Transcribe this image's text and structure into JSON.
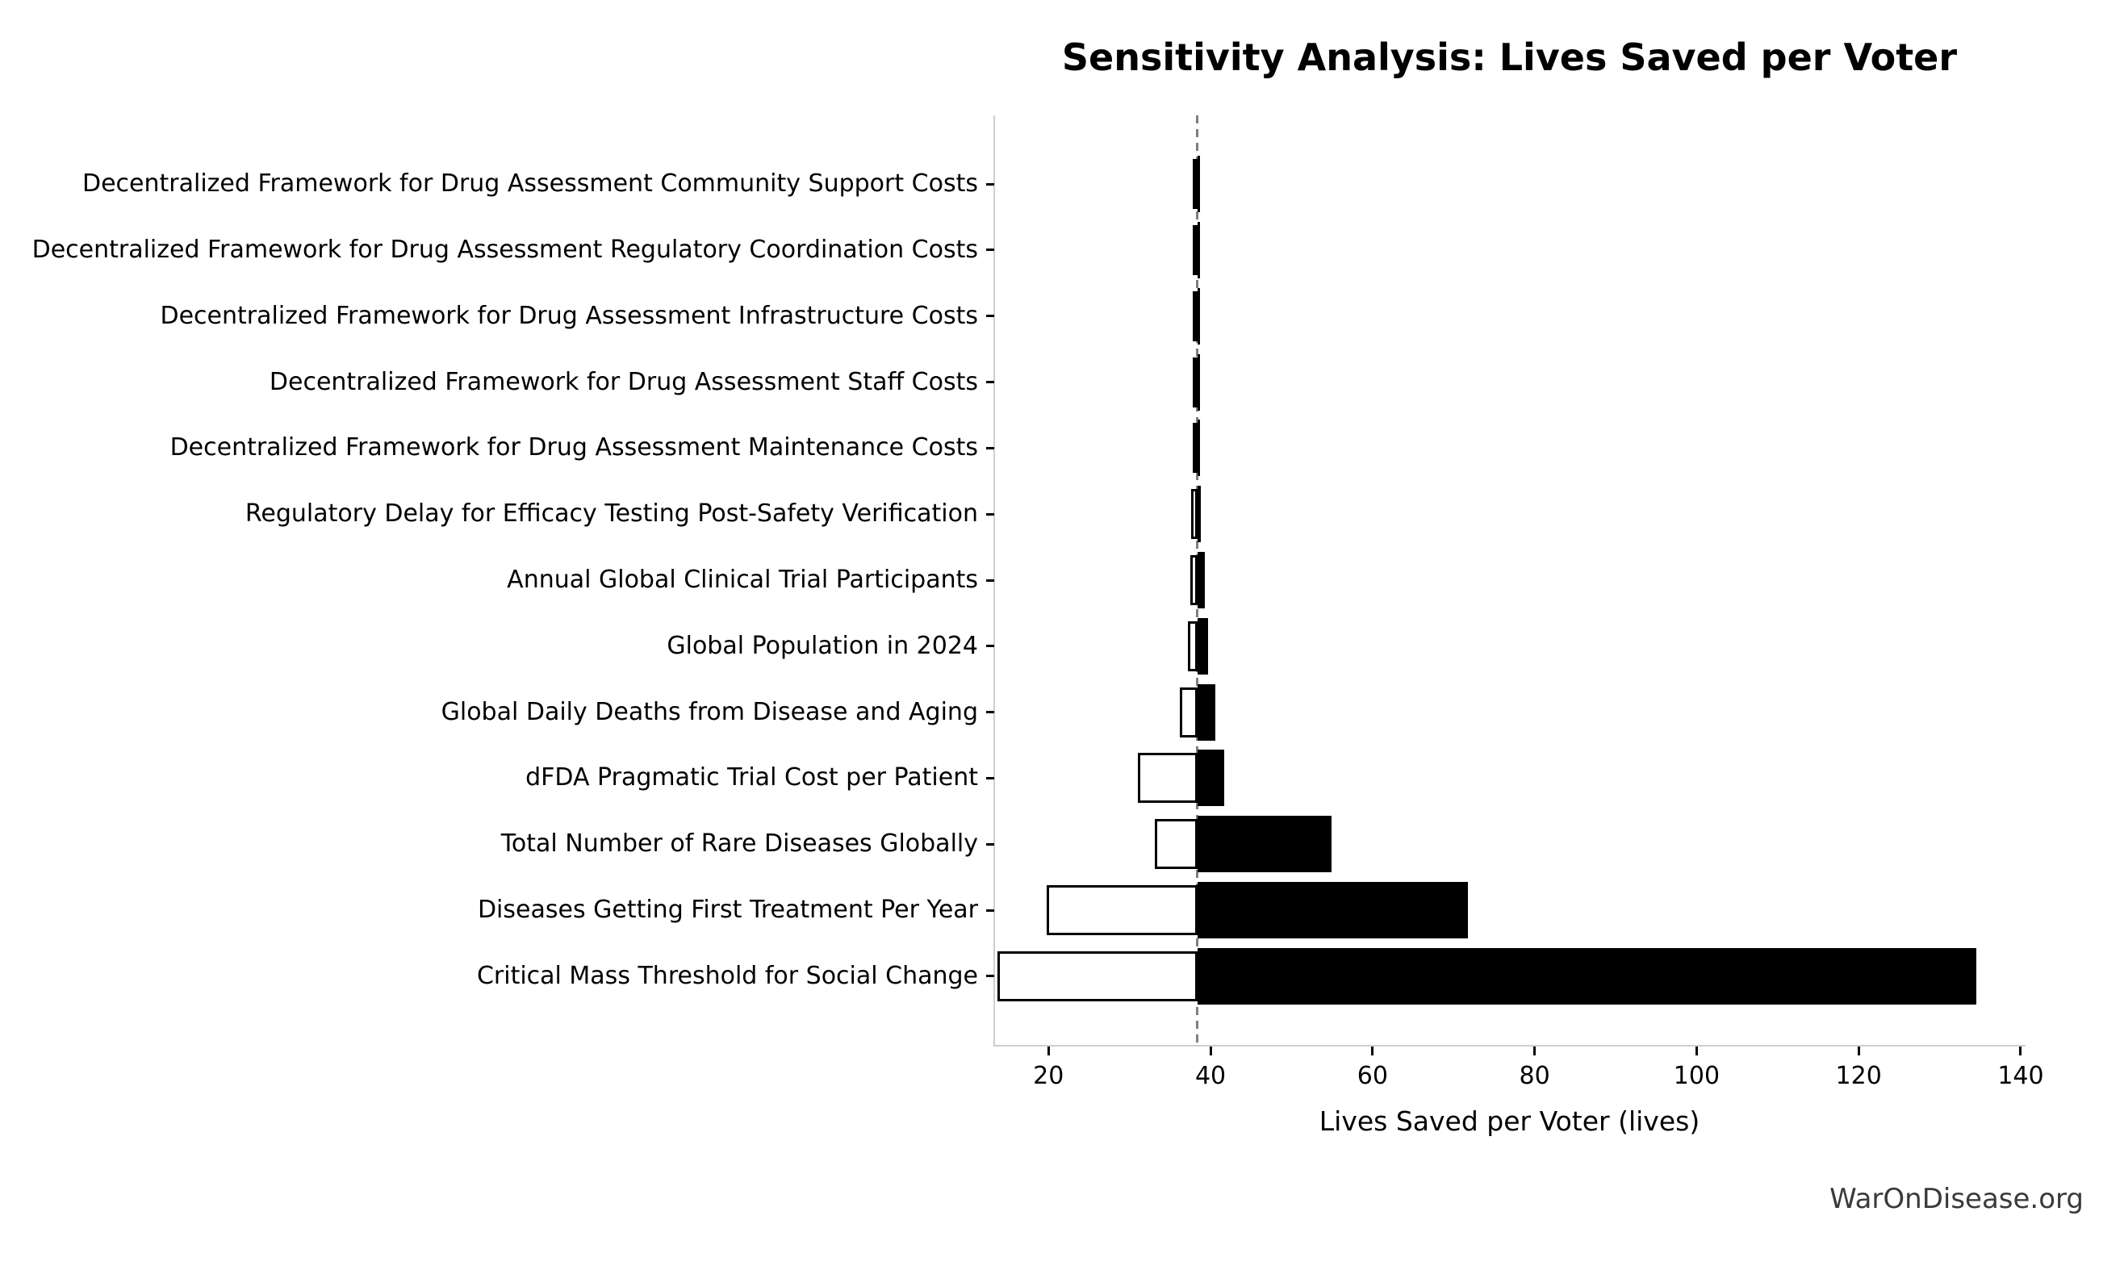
{
  "page": {
    "watermark": "WarOnDisease.org"
  },
  "colors": {
    "bar_high": "#000000",
    "bar_low_fill": "#ffffff",
    "bar_low_edge": "#000000",
    "spine": "#cfcfcf",
    "baseline_dash": "#7f7f7f",
    "text": "#000000",
    "watermark": "#3a3a3a"
  },
  "chart_data": {
    "type": "bar",
    "subtype": "tornado-sensitivity",
    "orientation": "horizontal",
    "title": "Sensitivity Analysis: Lives Saved per Voter",
    "xlabel": "Lives Saved per Voter (lives)",
    "ylabel": "",
    "grid": false,
    "legend": null,
    "baseline": 38.4,
    "xlim": [
      13.4,
      140.4
    ],
    "xticks": [
      20,
      40,
      60,
      80,
      100,
      120,
      140
    ],
    "bar_meaning": "white bar = low-case output, black bar = high-case output, both anchored at the dashed baseline",
    "rows": [
      {
        "label": "Decentralized Framework for Drug Assessment Community Support Costs",
        "low": 38.1,
        "high": 38.7
      },
      {
        "label": "Decentralized Framework for Drug Assessment Regulatory Coordination Costs",
        "low": 38.1,
        "high": 38.7
      },
      {
        "label": "Decentralized Framework for Drug Assessment Infrastructure Costs",
        "low": 38.1,
        "high": 38.7
      },
      {
        "label": "Decentralized Framework for Drug Assessment Staff Costs",
        "low": 38.0,
        "high": 38.7
      },
      {
        "label": "Decentralized Framework for Drug Assessment Maintenance Costs",
        "low": 38.0,
        "high": 38.7
      },
      {
        "label": "Regulatory Delay for Efficacy Testing Post-Safety Verification",
        "low": 37.6,
        "high": 38.8
      },
      {
        "label": "Annual Global Clinical Trial Participants",
        "low": 37.5,
        "high": 39.3
      },
      {
        "label": "Global Population in 2024",
        "low": 37.2,
        "high": 39.7
      },
      {
        "label": "Global Daily Deaths from Disease and Aging",
        "low": 36.2,
        "high": 40.6
      },
      {
        "label": "dFDA Pragmatic Trial Cost per Patient",
        "low": 31.0,
        "high": 41.7
      },
      {
        "label": "Total Number of Rare Diseases Globally",
        "low": 33.1,
        "high": 54.9
      },
      {
        "label": "Diseases Getting First Treatment Per Year",
        "low": 19.8,
        "high": 71.8
      },
      {
        "label": "Critical Mass Threshold for Social Change",
        "low": 13.7,
        "high": 134.5
      }
    ]
  }
}
